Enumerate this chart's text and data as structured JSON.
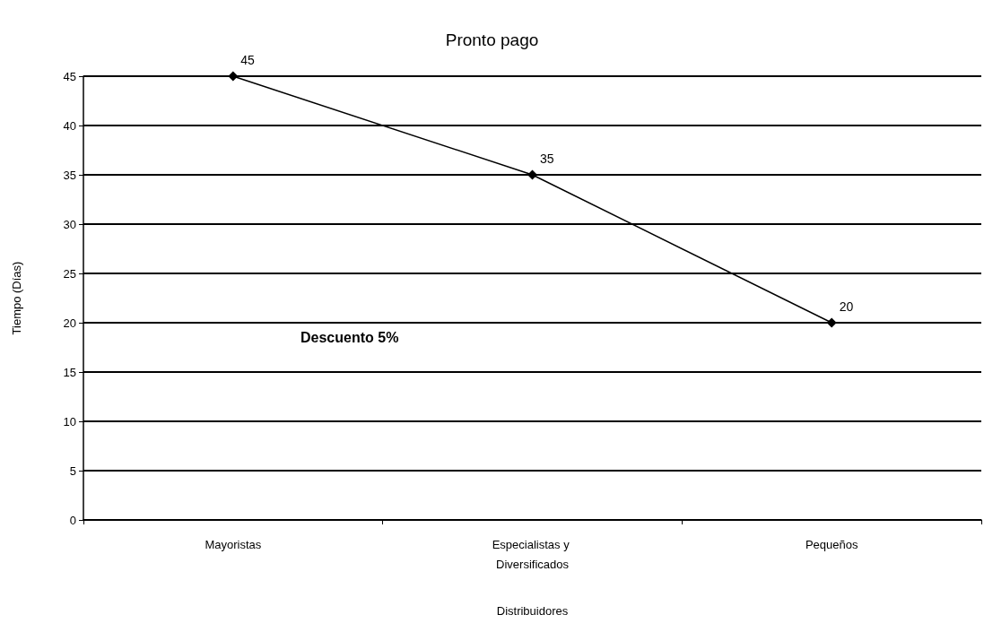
{
  "chart_data": {
    "type": "line",
    "title": "Pronto pago",
    "xlabel": "Distribuidores",
    "ylabel": "Tiempo (Días)",
    "categories": [
      "Mayoristas",
      "Especialistas y Diversificados",
      "Pequeños"
    ],
    "series": [
      {
        "color": "#000000",
        "values": [
          45,
          35,
          20
        ]
      }
    ],
    "ylim": [
      0,
      45
    ],
    "yticks": [
      0,
      5,
      10,
      15,
      20,
      25,
      30,
      35,
      40,
      45
    ],
    "grid": "y",
    "marker": "diamond",
    "line_style": "solid",
    "data_labels": true,
    "annotations": [
      "Descuento 5%"
    ]
  }
}
